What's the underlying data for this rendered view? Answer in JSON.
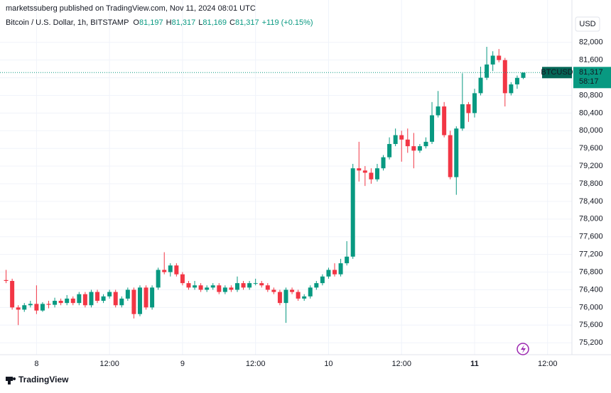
{
  "header": {
    "publisher_line": "marketssuberg published on TradingView.com, Nov 11, 2024 08:01 UTC"
  },
  "chart_data": {
    "type": "candlestick",
    "title": "Bitcoin / U.S. Dollar, 1h, BITSTAMP",
    "ohlc_legend": [
      {
        "key": "O",
        "value": "81,197"
      },
      {
        "key": "H",
        "value": "81,317"
      },
      {
        "key": "L",
        "value": "81,169"
      },
      {
        "key": "C",
        "value": "81,317"
      }
    ],
    "change": "+119 (+0.15%)",
    "currency": "USD",
    "symbol_tag": "BTCUSD",
    "last_price_label": "81,317",
    "countdown": "58:17",
    "up_color": "#089981",
    "down_color": "#f23645",
    "grid": true,
    "xlim": [
      -1,
      93
    ],
    "xticks": [
      {
        "value": 5,
        "label": "8"
      },
      {
        "value": 17,
        "label": "12:00"
      },
      {
        "value": 29,
        "label": "9"
      },
      {
        "value": 41,
        "label": "12:00"
      },
      {
        "value": 53,
        "label": "10"
      },
      {
        "value": 65,
        "label": "12:00"
      },
      {
        "value": 77,
        "label": "11"
      },
      {
        "value": 89,
        "label": "12:00"
      }
    ],
    "ylim": [
      74930,
      82960
    ],
    "yticks": [
      {
        "value": 75200,
        "label": "75,200"
      },
      {
        "value": 75600,
        "label": "75,600"
      },
      {
        "value": 76000,
        "label": "76,000"
      },
      {
        "value": 76400,
        "label": "76,400"
      },
      {
        "value": 76800,
        "label": "76,800"
      },
      {
        "value": 77200,
        "label": "77,200"
      },
      {
        "value": 77600,
        "label": "77,600"
      },
      {
        "value": 78000,
        "label": "78,000"
      },
      {
        "value": 78400,
        "label": "78,400"
      },
      {
        "value": 78800,
        "label": "78,800"
      },
      {
        "value": 79200,
        "label": "79,200"
      },
      {
        "value": 79600,
        "label": "79,600"
      },
      {
        "value": 80000,
        "label": "80,000"
      },
      {
        "value": 80400,
        "label": "80,400"
      },
      {
        "value": 80800,
        "label": "80,800"
      },
      {
        "value": 81200,
        "label": "81,200"
      },
      {
        "value": 81600,
        "label": "81,600"
      },
      {
        "value": 82000,
        "label": "82,000"
      }
    ],
    "last_price": 81317,
    "open": [
      76620,
      76600,
      76000,
      75950,
      76050,
      76080,
      75930,
      76080,
      76060,
      76150,
      76100,
      76200,
      76100,
      76300,
      76050,
      76350,
      76150,
      76250,
      76350,
      76050,
      76200,
      76400,
      75850,
      76450,
      76000,
      76450,
      76850,
      76800,
      76950,
      76750,
      76550,
      76450,
      76500,
      76400,
      76450,
      76500,
      76350,
      76450,
      76400,
      76550,
      76450,
      76550,
      76550,
      76500,
      76400,
      76350,
      76100,
      76400,
      76350,
      76200,
      76250,
      76450,
      76550,
      76700,
      76850,
      76750,
      77000,
      77150,
      79150,
      79100,
      79050,
      78900,
      79150,
      79400,
      79700,
      79900,
      79800,
      79650,
      79550,
      79650,
      79750,
      80350,
      80550,
      79900,
      78950,
      80050,
      80600,
      80400,
      80850,
      81200,
      81500,
      81700,
      81600,
      80850,
      81050,
      81197
    ],
    "high": [
      76850,
      76650,
      76050,
      76100,
      76150,
      76500,
      76120,
      76150,
      76220,
      76200,
      76280,
      76250,
      76350,
      76350,
      76400,
      76400,
      76300,
      76400,
      76400,
      76250,
      76450,
      76450,
      76500,
      76500,
      76500,
      76900,
      77250,
      77000,
      77000,
      76800,
      76600,
      76600,
      76550,
      76500,
      76550,
      76550,
      76500,
      76500,
      76700,
      76600,
      76600,
      76650,
      76600,
      76550,
      76450,
      76400,
      76450,
      76450,
      76400,
      76300,
      76500,
      76600,
      76750,
      76900,
      77000,
      77100,
      77500,
      79250,
      79750,
      79200,
      79150,
      79250,
      79450,
      79850,
      80050,
      80000,
      80050,
      79950,
      79700,
      79850,
      80650,
      80900,
      80650,
      80000,
      80100,
      81300,
      80650,
      80950,
      81450,
      81900,
      81800,
      81850,
      81650,
      81100,
      81250,
      81317
    ],
    "low": [
      76550,
      75950,
      75600,
      75900,
      76000,
      75850,
      75900,
      75980,
      76000,
      76050,
      76050,
      76050,
      76050,
      76000,
      76000,
      76100,
      76100,
      76200,
      76000,
      76000,
      76150,
      75750,
      75800,
      75950,
      75950,
      76400,
      76750,
      76700,
      76700,
      76500,
      76400,
      76400,
      76350,
      76350,
      76400,
      76300,
      76300,
      76350,
      76350,
      76400,
      76400,
      76500,
      76450,
      76350,
      76300,
      76050,
      75650,
      76300,
      76150,
      76150,
      76200,
      76400,
      76500,
      76650,
      76700,
      76700,
      76950,
      77100,
      78850,
      78750,
      78800,
      78850,
      79100,
      79350,
      79650,
      79300,
      79500,
      79150,
      79500,
      79600,
      79700,
      80300,
      79850,
      78900,
      78550,
      80000,
      80200,
      80300,
      80800,
      81150,
      81350,
      81550,
      80550,
      80800,
      80950,
      81169
    ],
    "close": [
      76600,
      76000,
      75950,
      76050,
      76080,
      75930,
      76080,
      76060,
      76150,
      76100,
      76200,
      76100,
      76300,
      76050,
      76350,
      76150,
      76250,
      76350,
      76050,
      76200,
      76400,
      75850,
      76450,
      76000,
      76450,
      76850,
      76800,
      76950,
      76750,
      76550,
      76450,
      76500,
      76400,
      76450,
      76500,
      76350,
      76450,
      76400,
      76550,
      76450,
      76550,
      76550,
      76500,
      76400,
      76350,
      76100,
      76400,
      76350,
      76200,
      76250,
      76450,
      76550,
      76700,
      76850,
      76750,
      77000,
      77150,
      79150,
      79100,
      79050,
      78900,
      79150,
      79400,
      79700,
      79900,
      79800,
      79650,
      79550,
      79650,
      79750,
      80350,
      80550,
      79900,
      78950,
      80050,
      80600,
      80400,
      80850,
      81200,
      81500,
      81700,
      81600,
      80850,
      81050,
      81197,
      81317
    ]
  },
  "footer": {
    "brand": "TradingView"
  }
}
